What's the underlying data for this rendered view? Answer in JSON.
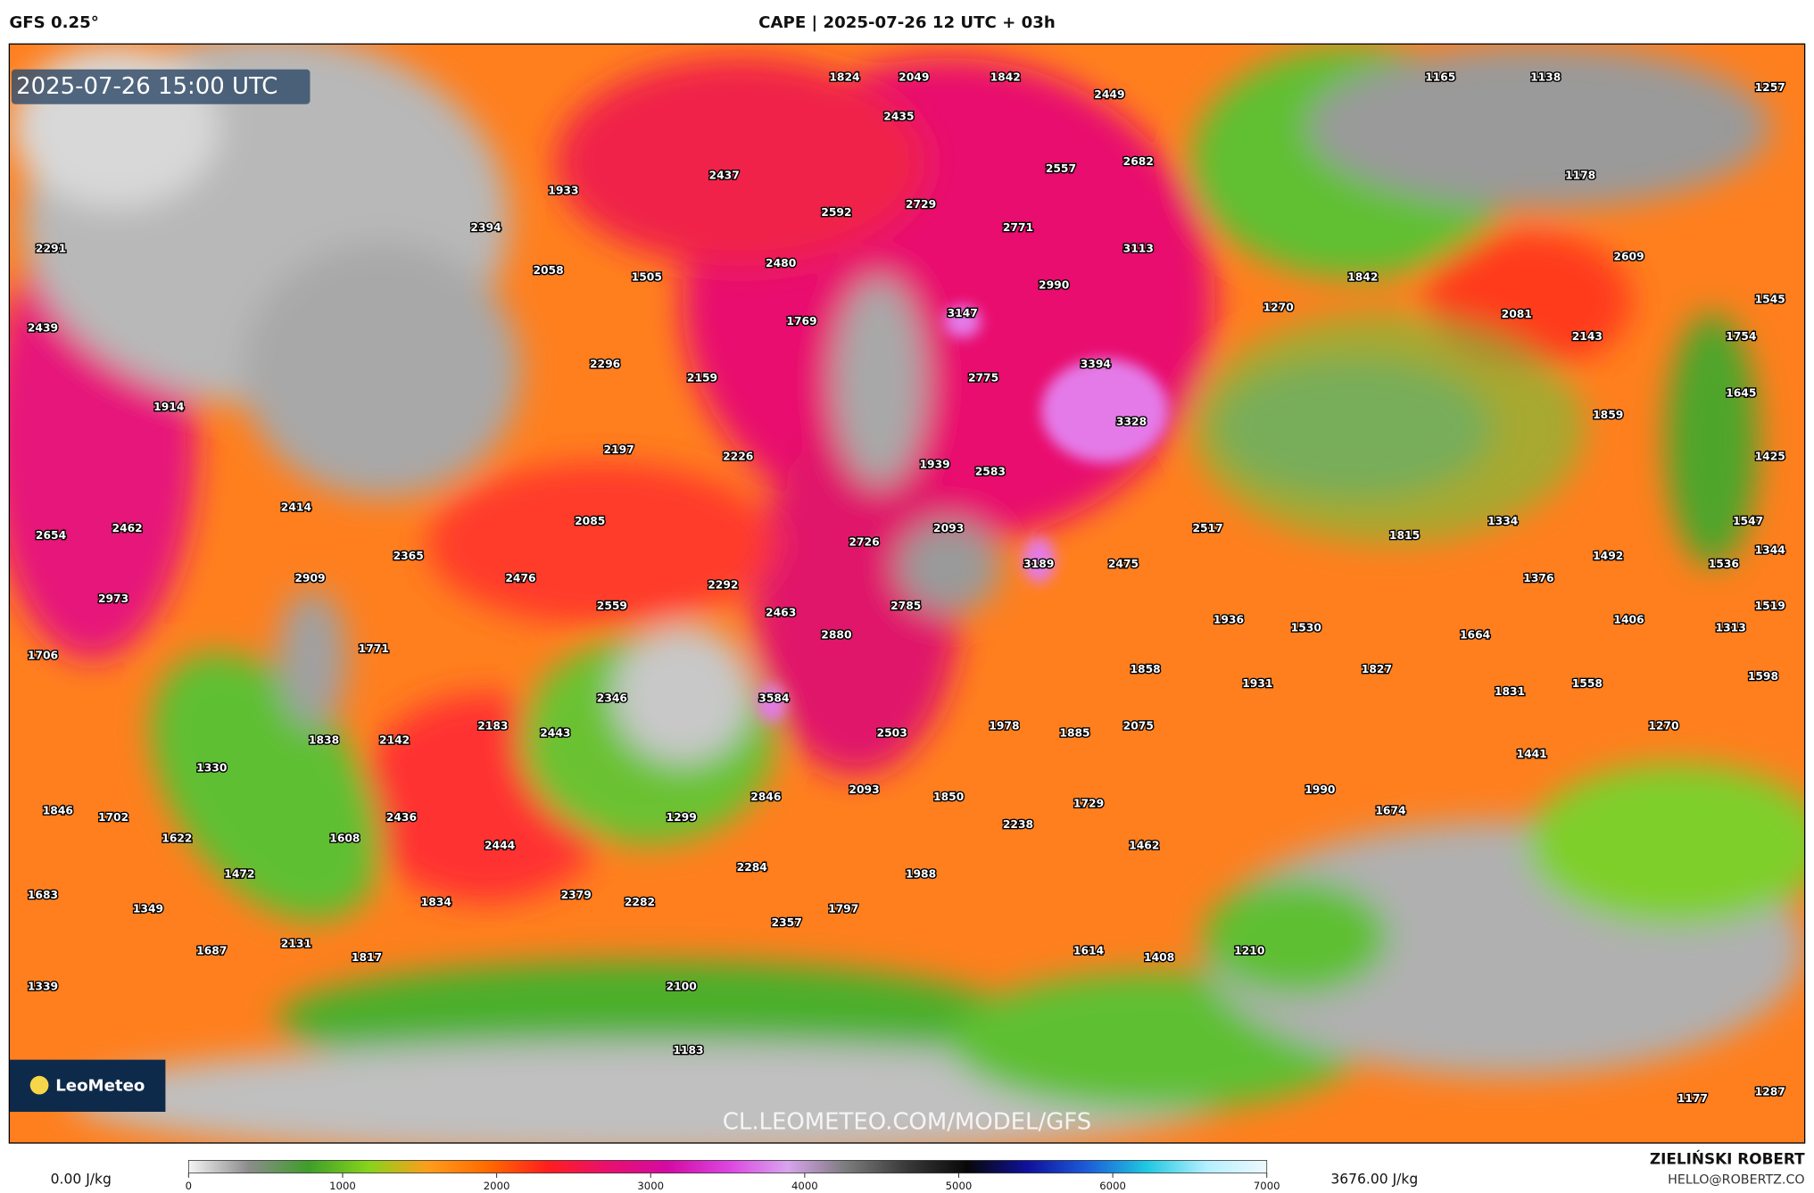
{
  "header": {
    "model": "GFS 0.25°",
    "title": "CAPE | 2025-07-26 12 UTC + 03h"
  },
  "map": {
    "timestamp": "2025-07-26 15:00 UTC",
    "watermark": "CL.LEOMETEO.COM/MODEL/GFS",
    "logo": "LeoMeteo",
    "labels": [
      1824,
      2049,
      1842,
      2449,
      1165,
      1138,
      1257,
      2435,
      2557,
      2682,
      1178,
      1933,
      2437,
      2592,
      2729,
      2771,
      2291,
      2394,
      3113,
      2609,
      2058,
      1505,
      2480,
      2990,
      1842,
      1270,
      2081,
      1545,
      2439,
      1769,
      3147,
      2143,
      1754,
      2296,
      2159,
      2775,
      3394,
      1914,
      1645,
      1859,
      3328,
      2197,
      2226,
      1939,
      2583,
      1425,
      2414,
      1334,
      1547,
      2654,
      2462,
      2085,
      2726,
      2093,
      2517,
      1815,
      1344,
      2365,
      2909,
      2476,
      3189,
      2475,
      1492,
      1536,
      1376,
      2973,
      2292,
      2559,
      2463,
      2785,
      1519,
      1936,
      1530,
      1664,
      1406,
      1313,
      1706,
      1771,
      2880,
      1858,
      1827,
      1931,
      1598,
      2346,
      3584,
      1831,
      1558,
      1838,
      2142,
      2183,
      2443,
      2503,
      1978,
      1885,
      2075,
      1270,
      1330,
      1441,
      1846,
      1702,
      2093,
      2846,
      1850,
      1729,
      1990,
      1674,
      2436,
      1299,
      2238,
      1622,
      1608,
      2444,
      1462,
      1472,
      2284,
      1988,
      1683,
      1349,
      1834,
      2379,
      2282,
      1797,
      2357,
      1687,
      2131,
      1817,
      1614,
      1408,
      1210,
      1339,
      2100,
      1183,
      1177,
      1287
    ]
  },
  "legend": {
    "min_label": "0.00 J/kg",
    "max_label": "3676.00 J/kg",
    "lim": [
      0,
      7000
    ],
    "ticks": [
      0,
      1000,
      2000,
      3000,
      4000,
      5000,
      6000,
      7000
    ],
    "colors": [
      "#f4f4f4",
      "#8c8c8c",
      "#3f9e2a",
      "#86d41c",
      "#ff9c1c",
      "#ff6a00",
      "#ff1e1e",
      "#e8106e",
      "#d40aa4",
      "#dc44e0",
      "#d8a4ee",
      "#7a7a7a",
      "#383838",
      "#080808",
      "#10109c",
      "#1c5cd8",
      "#20c8e0",
      "#b4f0ff",
      "#eef8ff"
    ]
  },
  "credits": {
    "author": "ZIELIŃSKI ROBERT",
    "contact": "HELLO@ROBERTZ.CO"
  }
}
